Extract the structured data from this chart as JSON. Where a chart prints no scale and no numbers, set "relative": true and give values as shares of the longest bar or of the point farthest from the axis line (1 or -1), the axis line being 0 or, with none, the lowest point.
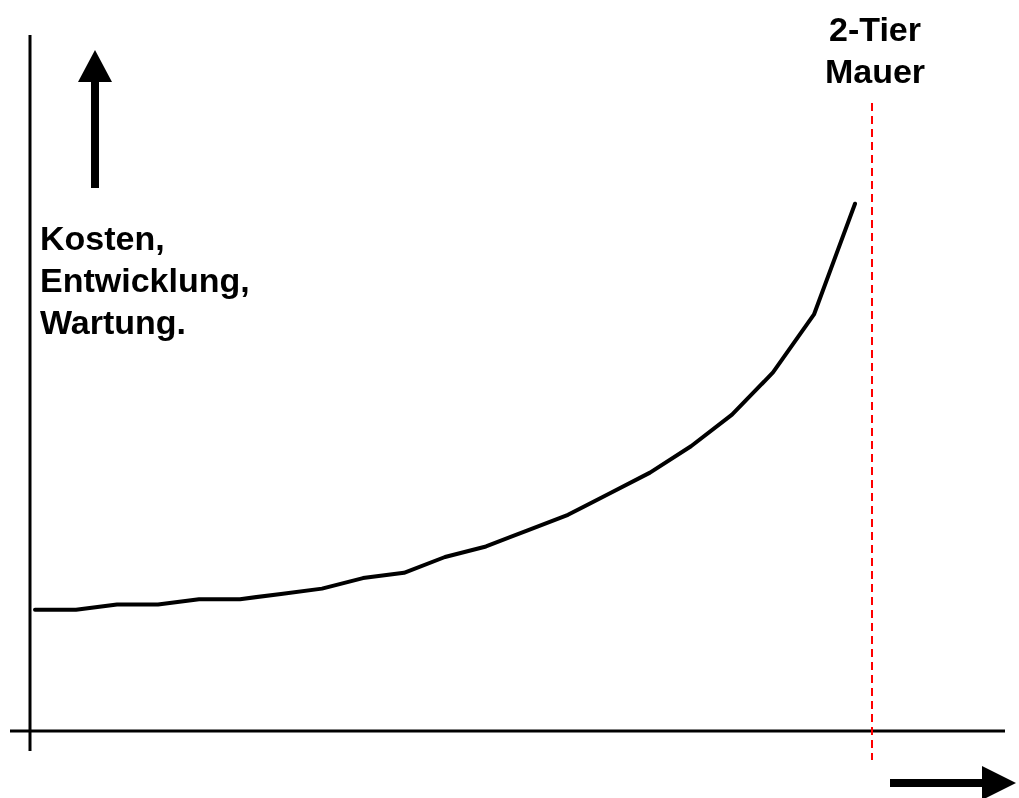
{
  "chart_data": {
    "type": "line",
    "relative": true,
    "ylabel": "Kosten, Entwicklung, Wartung.",
    "categories": [
      null,
      null,
      null,
      null,
      null,
      null,
      null,
      null,
      null,
      null,
      null,
      null,
      null,
      null,
      null,
      null,
      null,
      null,
      null,
      null,
      null
    ],
    "legend": false,
    "marker": "none",
    "line_style": "solid",
    "series": [
      {
        "color": "#000000",
        "values": [
          0.23,
          0.23,
          0.24,
          0.24,
          0.25,
          0.25,
          0.26,
          0.27,
          0.29,
          0.3,
          0.33,
          0.35,
          0.38,
          0.41,
          0.45,
          0.49,
          0.54,
          0.6,
          0.68,
          0.79,
          1
        ]
      }
    ],
    "annotations": [
      "2-Tier Mauer"
    ]
  }
}
